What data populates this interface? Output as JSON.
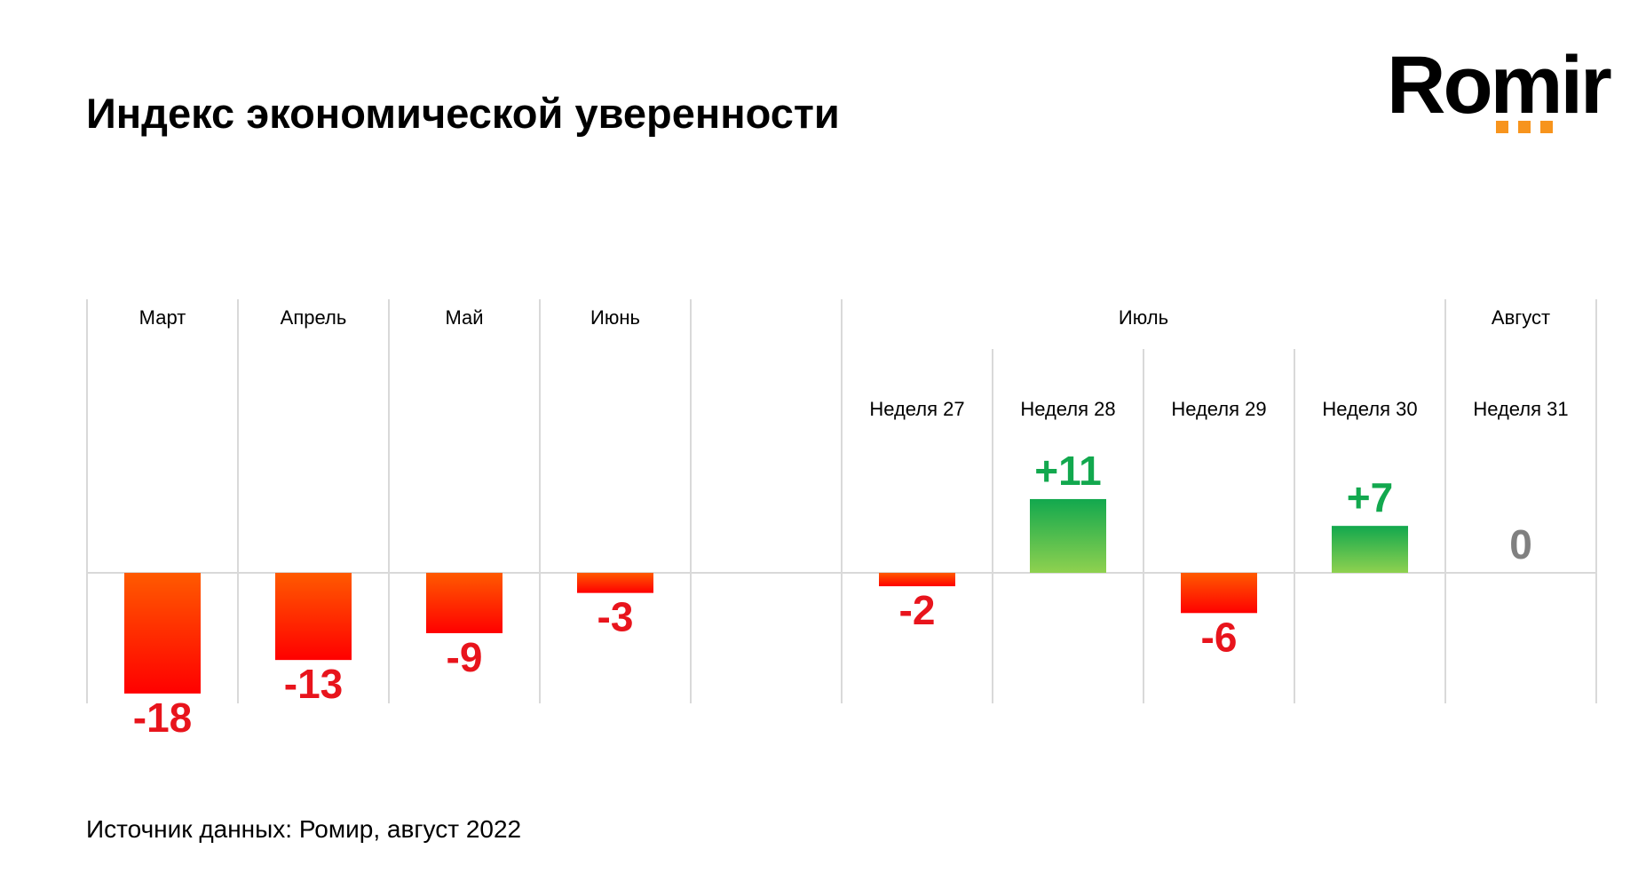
{
  "title": "Индекс экономической уверенности",
  "logo": {
    "text": "Romir",
    "accent_color": "#f7941d"
  },
  "source": "Источник данных: Ромир, август 2022",
  "colors": {
    "negative_top": "#ff5a00",
    "negative_bottom": "#ff0000",
    "negative_label": "#e8141c",
    "positive_top": "#12a84e",
    "positive_bottom": "#8fd14f",
    "positive_label": "#12a84e",
    "zero_label": "#808080",
    "grid": "#d9d9d9"
  },
  "chart_data": {
    "type": "bar",
    "title": "Индекс экономической уверенности",
    "groups": [
      {
        "label": "Март",
        "span": 1
      },
      {
        "label": "Апрель",
        "span": 1
      },
      {
        "label": "Май",
        "span": 1
      },
      {
        "label": "Июнь",
        "span": 1
      },
      {
        "label": "",
        "span": 1
      },
      {
        "label": "Июль",
        "span": 4
      },
      {
        "label": "Август",
        "span": 1
      }
    ],
    "categories": [
      "Март",
      "Апрель",
      "Май",
      "Июнь",
      "",
      "Неделя 27",
      "Неделя 28",
      "Неделя 29",
      "Неделя 30",
      "Неделя 31"
    ],
    "week_labels": [
      "",
      "",
      "",
      "",
      "",
      "Неделя 27",
      "Неделя 28",
      "Неделя 29",
      "Неделя 30",
      "Неделя 31"
    ],
    "values": [
      -18,
      -13,
      -9,
      -3,
      null,
      -2,
      11,
      -6,
      7,
      0
    ],
    "value_labels": [
      "-18",
      "-13",
      "-9",
      "-3",
      "",
      "-2",
      "+11",
      "-6",
      "+7",
      "0"
    ],
    "grid": true,
    "legend": "none"
  }
}
